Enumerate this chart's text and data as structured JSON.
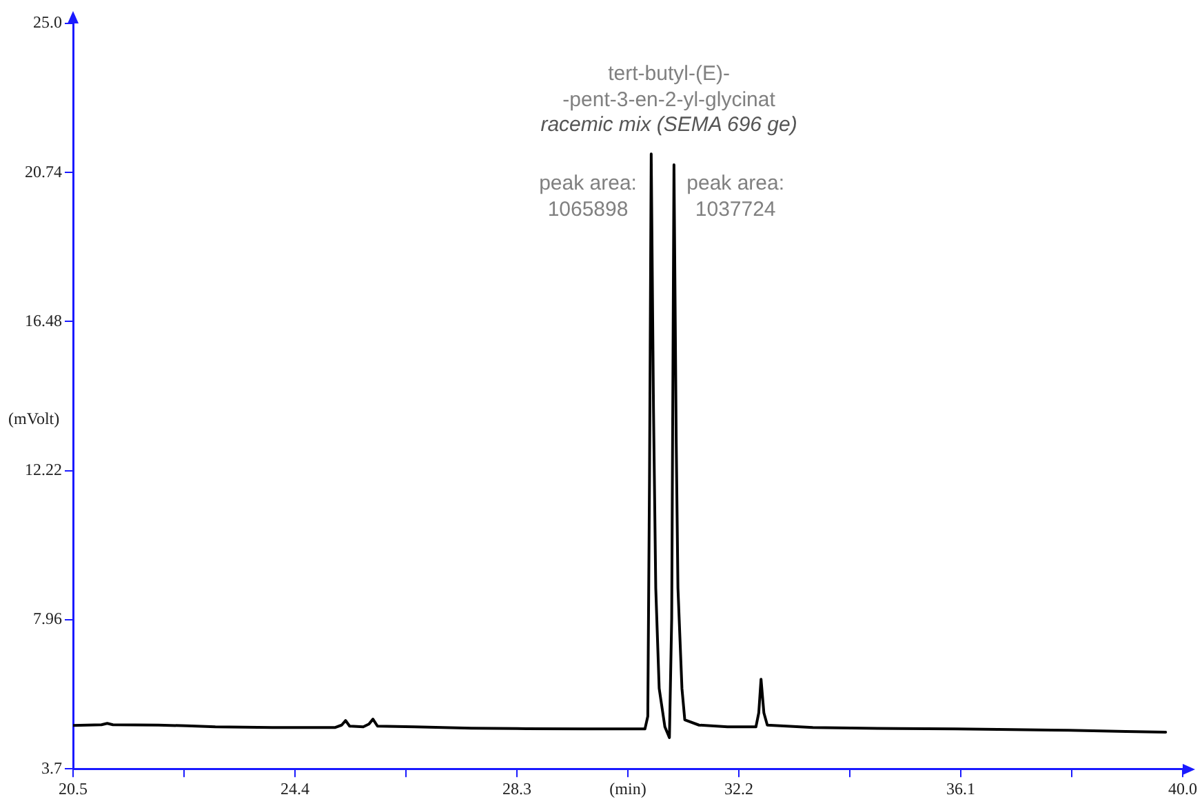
{
  "chart_data": {
    "type": "line",
    "xlabel": "(min)",
    "ylabel": "(mVolt)",
    "x": [
      20.5,
      21.0,
      21.1,
      21.2,
      22.0,
      22.5,
      23.0,
      24.0,
      25.1,
      25.22,
      25.29,
      25.36,
      25.6,
      25.7,
      25.77,
      25.85,
      26.5,
      27.5,
      28.3,
      29.5,
      30.55,
      30.6,
      30.63,
      30.66,
      30.7,
      30.74,
      30.8,
      30.9,
      30.98,
      31.02,
      31.06,
      31.1,
      31.13,
      31.2,
      31.25,
      31.5,
      32.0,
      32.5,
      32.55,
      32.59,
      32.64,
      32.7,
      33.5,
      35.0,
      36.0,
      37.0,
      38.0,
      39.0,
      39.7
    ],
    "series": [
      {
        "color": "#000000",
        "values": [
          4.94,
          4.96,
          5.0,
          4.96,
          4.95,
          4.93,
          4.9,
          4.88,
          4.88,
          4.95,
          5.08,
          4.92,
          4.9,
          4.98,
          5.12,
          4.92,
          4.9,
          4.86,
          4.85,
          4.84,
          4.84,
          5.2,
          12.0,
          21.27,
          14.0,
          8.86,
          6.0,
          4.9,
          4.59,
          8.0,
          20.96,
          13.0,
          8.86,
          6.0,
          5.1,
          4.95,
          4.9,
          4.9,
          5.3,
          6.26,
          5.3,
          4.95,
          4.88,
          4.85,
          4.84,
          4.82,
          4.8,
          4.77,
          4.75
        ]
      }
    ],
    "xlim": [
      20.5,
      40.0
    ],
    "xticks": [
      20.5,
      {
        "value": 22.45,
        "label": null
      },
      24.4,
      {
        "value": 26.35,
        "label": null
      },
      28.3,
      {
        "value": 30.25,
        "label": null
      },
      32.2,
      {
        "value": 34.15,
        "label": null
      },
      36.1,
      {
        "value": 38.05,
        "label": null
      },
      {
        "value": 40,
        "label": "40.0"
      }
    ],
    "ylim": [
      3.7,
      25.0
    ],
    "yticks": [
      3.7,
      7.96,
      12.22,
      16.48,
      20.74,
      {
        "value": 25,
        "label": "25.0"
      }
    ],
    "grid": false,
    "legend": false,
    "marker": "none",
    "line_style": "solid",
    "annotations": [
      "tert-butyl-(E)-\n-pent-3-en-2-yl-glycinat",
      "racemic mix (SEMA 696 ge)",
      "peak area:\n1065898",
      "peak area:\n1037724"
    ]
  }
}
